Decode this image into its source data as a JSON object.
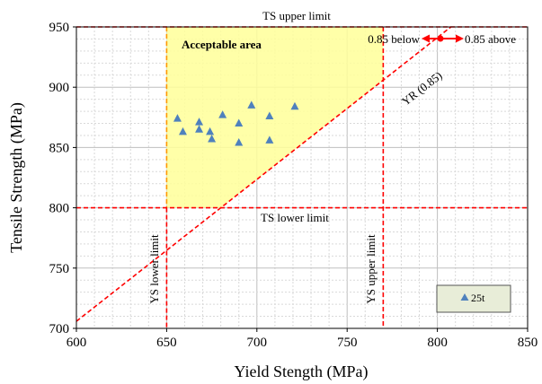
{
  "chart_data": {
    "type": "scatter",
    "xlabel": "Yield Stength (MPa)",
    "ylabel": "Tensile Strength (MPa)",
    "xlim": [
      600,
      850
    ],
    "ylim": [
      700,
      950
    ],
    "x_ticks": [
      600,
      650,
      700,
      750,
      800,
      850
    ],
    "y_ticks": [
      700,
      750,
      800,
      850,
      900,
      950
    ],
    "x_minor_step": 10,
    "y_minor_step": 10,
    "grid": true,
    "series": [
      {
        "name": "25t",
        "marker": "triangle",
        "color": "#4f81bd",
        "points": [
          {
            "x": 656,
            "y": 874
          },
          {
            "x": 659,
            "y": 863
          },
          {
            "x": 668,
            "y": 871
          },
          {
            "x": 668,
            "y": 865
          },
          {
            "x": 674,
            "y": 863
          },
          {
            "x": 675,
            "y": 857
          },
          {
            "x": 681,
            "y": 877
          },
          {
            "x": 690,
            "y": 870
          },
          {
            "x": 690,
            "y": 854
          },
          {
            "x": 697,
            "y": 885
          },
          {
            "x": 707,
            "y": 876
          },
          {
            "x": 707,
            "y": 856
          },
          {
            "x": 721,
            "y": 884
          }
        ]
      }
    ],
    "limits": {
      "ys_lower": 650,
      "ys_upper": 770,
      "ts_lower": 800,
      "ts_upper": 950,
      "yield_ratio": 0.85
    },
    "labels": {
      "ts_upper": "TS upper limit",
      "ts_lower": "TS lower limit",
      "ys_lower": "YS lower limit",
      "ys_upper": "YS upper limit",
      "yr_line": "YR (0.85)",
      "acceptable": "Acceptable area",
      "below": "0.85 below",
      "above": "0.85 above"
    },
    "legend_position": "bottom-right",
    "colors": {
      "limit_line": "#ff0000",
      "acceptable_fill": "#ffff99",
      "acceptable_border": "#ff9900",
      "marker": "#4f81bd",
      "legend_bg": "#e8edd8"
    }
  }
}
